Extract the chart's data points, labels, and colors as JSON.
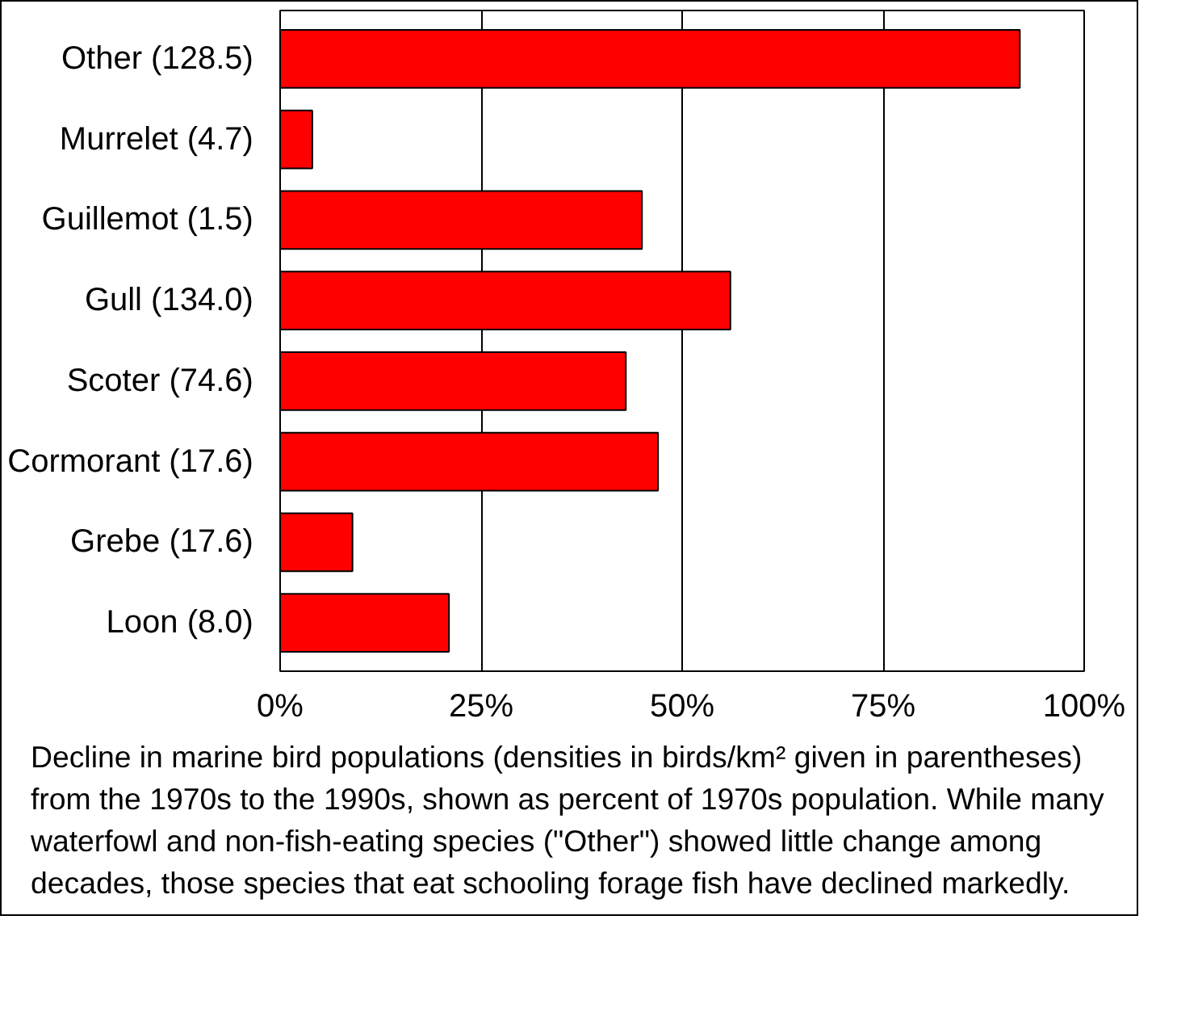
{
  "chart_data": {
    "type": "bar",
    "orientation": "horizontal",
    "categories": [
      "Other  (128.5)",
      "Murrelet  (4.7)",
      "Guillemot  (1.5)",
      "Gull  (134.0)",
      "Scoter  (74.6)",
      "Cormorant  (17.6)",
      "Grebe  (17.6)",
      "Loon  (8.0)"
    ],
    "values": [
      92,
      4,
      45,
      56,
      43,
      47,
      9,
      21
    ],
    "color": "#ff0000",
    "xlim": [
      0,
      100
    ],
    "xticks": [
      {
        "value": 0,
        "label": "0%"
      },
      {
        "value": 25,
        "label": "25%"
      },
      {
        "value": 50,
        "label": "50%"
      },
      {
        "value": 75,
        "label": "75%"
      },
      {
        "value": 100,
        "label": "100%"
      }
    ],
    "grid": "x",
    "annotations": [
      "Decline in marine bird populations (densities in birds/km² given in parentheses) from the 1970s to the 1990s, shown as percent of 1970s population.  While many waterfowl and non-fish-eating species (\"Other\") showed little change among decades, those species that eat schooling forage fish have declined markedly."
    ]
  }
}
